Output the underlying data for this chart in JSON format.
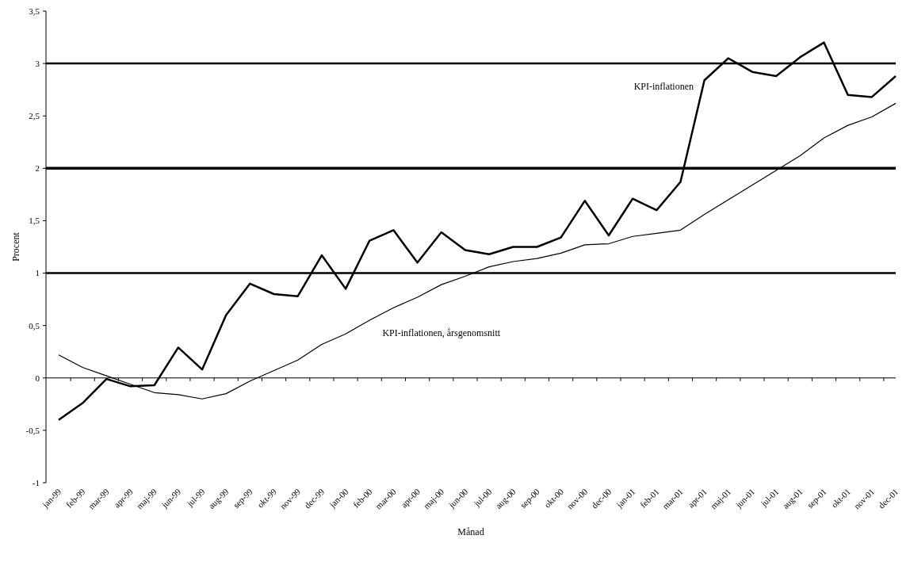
{
  "chart_data": {
    "type": "line",
    "xlabel": "Månad",
    "ylabel": "Procent",
    "categories": [
      "jan-99",
      "feb-99",
      "mar-99",
      "apr-99",
      "maj-99",
      "jun-99",
      "jul-99",
      "aug-99",
      "sep-99",
      "okt-99",
      "nov-99",
      "dec-99",
      "jan-00",
      "feb-00",
      "mar-00",
      "apr-00",
      "maj-00",
      "jun-00",
      "jul-00",
      "aug-00",
      "sep-00",
      "okt-00",
      "nov-00",
      "dec-00",
      "jan-01",
      "feb-01",
      "mar-01",
      "apr-01",
      "maj-01",
      "jun-01",
      "jul-01",
      "aug-01",
      "sep-01",
      "okt-01",
      "nov-01",
      "dec-01"
    ],
    "series": [
      {
        "name": "KPI-inflationen",
        "color": "#000000",
        "values": [
          -0.4,
          -0.24,
          -0.01,
          -0.08,
          -0.07,
          0.29,
          0.08,
          0.6,
          0.9,
          0.8,
          0.78,
          1.17,
          0.85,
          1.31,
          1.41,
          1.1,
          1.39,
          1.22,
          1.18,
          1.25,
          1.25,
          1.34,
          1.69,
          1.36,
          1.71,
          1.6,
          1.87,
          2.84,
          3.05,
          2.92,
          2.88,
          3.06,
          3.2,
          2.7,
          2.68,
          2.88
        ]
      },
      {
        "name": "KPI-inflationen, årsgenomsnitt",
        "color": "#000000",
        "values": [
          0.22,
          0.1,
          0.02,
          -0.06,
          -0.14,
          -0.16,
          -0.2,
          -0.15,
          -0.03,
          0.07,
          0.17,
          0.32,
          0.42,
          0.55,
          0.67,
          0.77,
          0.89,
          0.97,
          1.06,
          1.11,
          1.14,
          1.19,
          1.27,
          1.28,
          1.35,
          1.38,
          1.41,
          1.56,
          1.7,
          1.84,
          1.98,
          2.12,
          2.29,
          2.41,
          2.49,
          2.62
        ]
      }
    ],
    "ylim": [
      -1,
      3.5
    ],
    "yticks": [
      {
        "value": -1,
        "label": "-1"
      },
      {
        "value": -0.5,
        "label": "-0,5"
      },
      {
        "value": 0,
        "label": "0"
      },
      {
        "value": 0.5,
        "label": "0,5"
      },
      {
        "value": 1,
        "label": "1"
      },
      {
        "value": 1.5,
        "label": "1,5"
      },
      {
        "value": 2,
        "label": "2"
      },
      {
        "value": 2.5,
        "label": "2,5"
      },
      {
        "value": 3,
        "label": "3"
      },
      {
        "value": 3.5,
        "label": "3,5"
      }
    ],
    "ref_lines": [
      {
        "axis": "y",
        "value": 1,
        "color": "#000000"
      },
      {
        "axis": "y",
        "value": 2,
        "color": "#000000"
      },
      {
        "axis": "y",
        "value": 3,
        "color": "#000000"
      }
    ],
    "grid": false,
    "marker": "none",
    "line_style": "solid"
  }
}
